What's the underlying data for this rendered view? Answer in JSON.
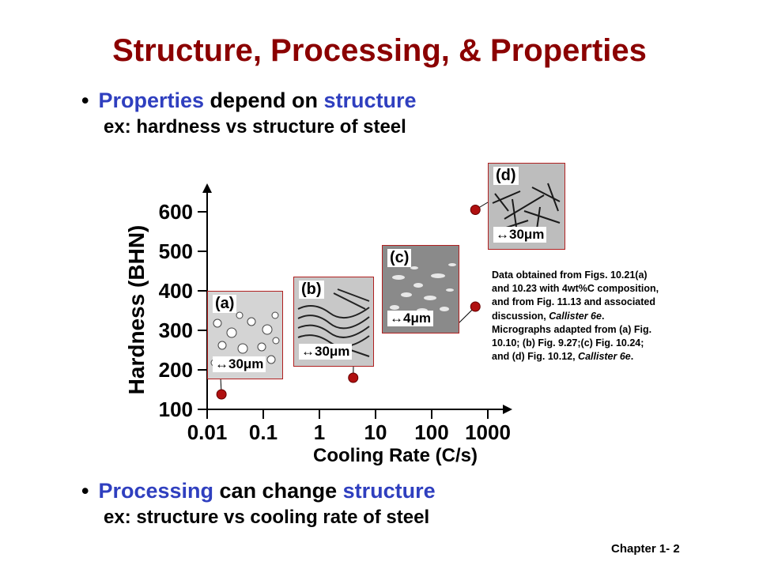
{
  "title": "Structure, Processing, & Properties",
  "bullet1": {
    "w1": "Properties",
    "w2": "depend on",
    "w3": "structure"
  },
  "sub1": "ex:  hardness vs structure of steel",
  "bullet2": {
    "w1": "Processing",
    "w2": "can change",
    "w3": "structure"
  },
  "sub2": "ex:  structure vs cooling rate of steel",
  "note": {
    "l1": "Data obtained from Figs. 10.21(a)",
    "l2": "and 10.23 with 4wt%C composition,",
    "l3": "and from Fig. 11.13 and associated",
    "l4a": "discussion, ",
    "l4b": "Callister 6e",
    "l5": "Micrographs adapted from (a) Fig.",
    "l6": "10.10; (b) Fig. 9.27;(c) Fig. 10.24;",
    "l7a": "and (d) Fig. 10.12, ",
    "l7b": "Callister 6e"
  },
  "footer": "Chapter 1- 2",
  "colors": {
    "title": "#8b0000",
    "highlight": "#2f3fbf",
    "marker": "#b01010"
  },
  "chart_data": {
    "type": "scatter",
    "xlabel": "Cooling Rate (C/s)",
    "ylabel": "Hardness (BHN)",
    "x_scale": "log",
    "x_ticks": [
      {
        "v": 0.01,
        "l": "0.01"
      },
      {
        "v": 0.1,
        "l": "0.1"
      },
      {
        "v": 1,
        "l": "1"
      },
      {
        "v": 10,
        "l": "10"
      },
      {
        "v": 100,
        "l": "100"
      },
      {
        "v": 1000,
        "l": "1000"
      }
    ],
    "y_ticks": [
      100,
      200,
      300,
      400,
      500,
      600
    ],
    "xlim": [
      0.01,
      1000
    ],
    "ylim": [
      100,
      600
    ],
    "points": [
      {
        "x": 0.018,
        "y": 138,
        "label": "(a)",
        "scale": "30μm"
      },
      {
        "x": 4,
        "y": 180,
        "label": "(b)",
        "scale": "30μm"
      },
      {
        "x": 600,
        "y": 360,
        "label": "(c)",
        "scale": "4μm"
      },
      {
        "x": 600,
        "y": 605,
        "label": "(d)",
        "scale": "30μm"
      }
    ]
  }
}
